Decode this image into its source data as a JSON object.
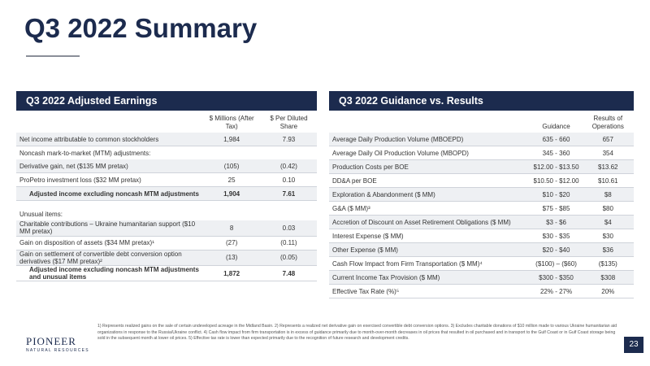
{
  "title": "Q3 2022 Summary",
  "earnings": {
    "header": "Q3 2022 Adjusted Earnings",
    "columns": [
      "$ Millions (After Tax)",
      "$ Per Diluted Share"
    ],
    "rows": [
      [
        "Net income attributable to common stockholders",
        "1,984",
        "7.93"
      ],
      [
        "Noncash mark-to-market (MTM) adjustments:"
      ],
      [
        "Derivative gain, net ($135 MM pretax)",
        "(105)",
        "(0.42)"
      ],
      [
        "ProPetro investment loss ($32 MM pretax)",
        "25",
        "0.10"
      ],
      [
        "Adjusted income excluding noncash MTM adjustments",
        "1,904",
        "7.61"
      ],
      [
        "Unusual items:"
      ],
      [
        "Charitable contributions – Ukraine humanitarian support ($10 MM pretax)",
        "8",
        "0.03"
      ],
      [
        "Gain on disposition of assets ($34 MM pretax)¹",
        "(27)",
        "(0.11)"
      ],
      [
        "Gain on settlement of convertible debt conversion option derivatives ($17 MM pretax)²",
        "(13)",
        "(0.05)"
      ],
      [
        "Adjusted income excluding noncash MTM adjustments and unusual items",
        "1,872",
        "7.48"
      ]
    ]
  },
  "guidance": {
    "header": "Q3 2022 Guidance vs. Results",
    "columns": [
      "Guidance",
      "Results of Operations"
    ],
    "rows": [
      [
        "Average Daily Production Volume (MBOEPD)",
        "635 - 660",
        "657"
      ],
      [
        "Average Daily Oil Production Volume (MBOPD)",
        "345 - 360",
        "354"
      ],
      [
        "Production Costs per BOE",
        "$12.00 - $13.50",
        "$13.62"
      ],
      [
        "DD&A per BOE",
        "$10.50 - $12.00",
        "$10.61"
      ],
      [
        "Exploration & Abandonment ($ MM)",
        "$10 - $20",
        "$8"
      ],
      [
        "G&A ($ MM)³",
        "$75 - $85",
        "$80"
      ],
      [
        "Accretion of Discount on Asset Retirement Obligations ($ MM)",
        "$3 - $6",
        "$4"
      ],
      [
        "Interest Expense ($ MM)",
        "$30 - $35",
        "$30"
      ],
      [
        "Other Expense ($ MM)",
        "$20 - $40",
        "$36"
      ],
      [
        "Cash Flow Impact from Firm Transportation ($ MM)⁴",
        "($100) – ($60)",
        "($135)"
      ],
      [
        "Current Income Tax Provision ($ MM)",
        "$300 - $350",
        "$308"
      ],
      [
        "Effective Tax Rate (%)⁵",
        "22% - 27%",
        "20%"
      ]
    ]
  },
  "footnote": "1) Represents realized gains on the sale of certain undeveloped acreage in the Midland Basin. 2) Represents a realized net derivative gain on exercised convertible debt conversion options. 3) Excludes charitable donations of $10 million made to various Ukraine humanitarian aid organizations in response to the Russia/Ukraine conflict. 4) Cash flow impact from firm transportation is in excess of guidance primarily due to month-over-month decreases in oil prices that resulted in oil purchased and in transport to the Gulf Coast or in Gulf Coast storage being sold in the subsequent month at lower oil prices. 5) Effective tax rate is lower than expected primarily due to the recognition of future research and development credits.",
  "logo": {
    "name": "PIONEER",
    "tagline": "NATURAL RESOURCES"
  },
  "page_number": "23"
}
